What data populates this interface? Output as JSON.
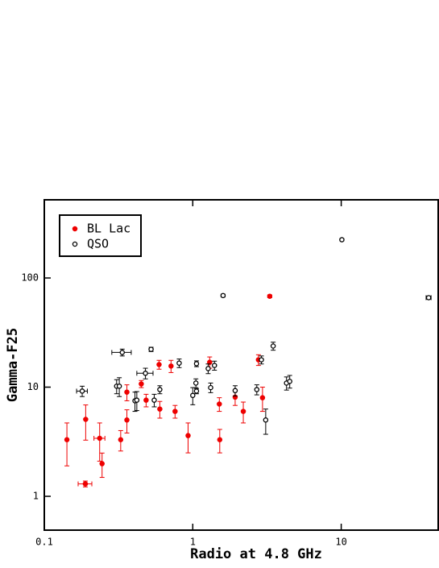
{
  "chart_data": {
    "type": "scatter",
    "xlabel": "Radio at 4.8 GHz",
    "ylabel": "Gamma-F25",
    "xlog": true,
    "ylog": true,
    "xlim": [
      0.1,
      45
    ],
    "ylim": [
      0.49,
      520
    ],
    "xticks": [
      0.1,
      1,
      10
    ],
    "yticks": [
      1,
      10,
      100
    ],
    "legend": "upper left",
    "series": [
      {
        "name": "BL Lac",
        "color": "#ee0000",
        "marker": "filled",
        "x": [
          0.142,
          0.189,
          0.19,
          0.236,
          0.245,
          0.327,
          0.36,
          0.36,
          0.45,
          0.485,
          0.593,
          0.6,
          0.714,
          0.76,
          0.93,
          1.3,
          1.51,
          1.52,
          1.93,
          2.19,
          2.77,
          2.95,
          3.3
        ],
        "values": [
          3.3,
          1.3,
          5.07,
          3.4,
          1.99,
          3.3,
          9.0,
          5.0,
          10.7,
          7.6,
          16.1,
          6.3,
          15.6,
          6.0,
          3.6,
          16.9,
          7.0,
          3.3,
          8.1,
          6.0,
          17.8,
          8.0,
          68
        ],
        "yerr": [
          1.4,
          0.08,
          1.8,
          1.3,
          0.5,
          0.7,
          1.5,
          1.2,
          0.8,
          1.0,
          1.5,
          1.1,
          2.0,
          0.8,
          1.1,
          2.0,
          1.0,
          0.8,
          1.3,
          1.3,
          2.0,
          2.0,
          2.0
        ],
        "xerr": [
          null,
          0.02,
          null,
          0.02,
          null,
          null,
          null,
          null,
          null,
          null,
          null,
          null,
          null,
          null,
          null,
          null,
          null,
          null,
          null,
          null,
          null,
          null,
          null
        ]
      },
      {
        "name": "QSO",
        "color": "#000000",
        "marker": "open",
        "x": [
          0.18,
          0.307,
          0.32,
          0.335,
          0.408,
          0.42,
          0.48,
          0.524,
          0.55,
          0.6,
          0.81,
          1.0,
          1.05,
          1.06,
          1.06,
          1.27,
          1.32,
          1.4,
          1.6,
          1.93,
          2.7,
          2.9,
          3.1,
          3.48,
          4.28,
          4.5,
          10.1,
          38.8
        ],
        "values": [
          9.2,
          10.2,
          10.2,
          20.8,
          7.5,
          7.6,
          13.4,
          22.2,
          7.6,
          9.5,
          16.6,
          8.4,
          10.9,
          9.2,
          16.4,
          14.8,
          9.9,
          15.8,
          69,
          9.3,
          9.5,
          17.8,
          5.0,
          23.8,
          10.9,
          11.3,
          224,
          66
        ],
        "yerr": [
          1.0,
          1.5,
          2.0,
          1.5,
          1.5,
          1.5,
          1.5,
          1.0,
          1.0,
          0.8,
          1.5,
          1.5,
          1.0,
          0.5,
          1.0,
          1.5,
          1.0,
          1.5,
          2.0,
          1.0,
          1.0,
          1.5,
          1.3,
          2.0,
          1.5,
          1.5,
          5.0,
          2.0
        ],
        "xerr": [
          0.015,
          null,
          null,
          0.05,
          null,
          null,
          0.06,
          null,
          null,
          null,
          null,
          null,
          null,
          null,
          null,
          null,
          null,
          null,
          null,
          null,
          null,
          null,
          null,
          null,
          null,
          null,
          null,
          1.5
        ]
      }
    ]
  }
}
